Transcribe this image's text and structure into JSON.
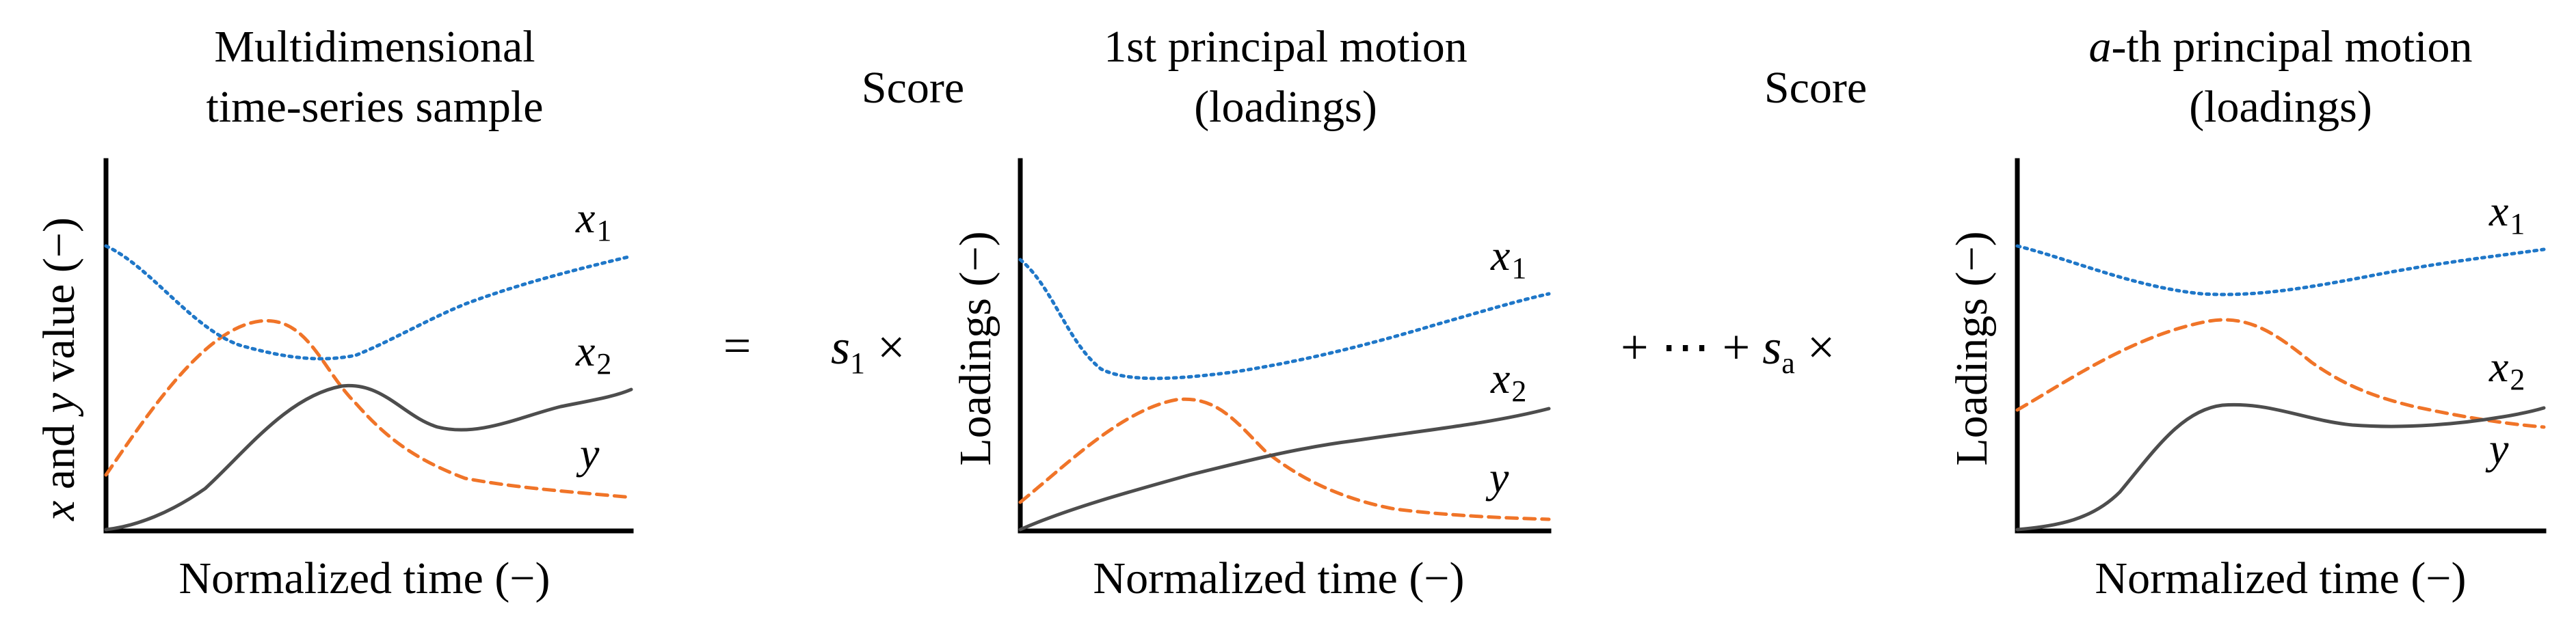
{
  "colors": {
    "x1": "#1f77c8",
    "x2": "#4d4d4d",
    "y": "#f07428",
    "axis": "#000000"
  },
  "panels": [
    {
      "title_lines": [
        "Multidimensional",
        "time-series sample"
      ],
      "ylabel_italic_x": "x",
      "ylabel_mid": " and ",
      "ylabel_italic_y": "y",
      "ylabel_rest": " value (−)",
      "xlabel": "Normalized time (−)",
      "series_labels": {
        "x1": "x",
        "x1_sub": "1",
        "x2": "x",
        "x2_sub": "2",
        "y": "y"
      }
    },
    {
      "title_lines": [
        "1st principal motion",
        "(loadings)"
      ],
      "ylabel": "Loadings (−)",
      "xlabel": "Normalized time (−)",
      "series_labels": {
        "x1": "x",
        "x1_sub": "1",
        "x2": "x",
        "x2_sub": "2",
        "y": "y"
      }
    },
    {
      "title_lines_italic": "a",
      "title_line1_rest": "-th principal motion",
      "title_line2": "(loadings)",
      "ylabel": "Loadings (−)",
      "xlabel": "Normalized time (−)",
      "series_labels": {
        "x1": "x",
        "x1_sub": "1",
        "x2": "x",
        "x2_sub": "2",
        "y": "y"
      }
    }
  ],
  "operators": {
    "equals": "=",
    "score1_label": "Score",
    "s1": "s",
    "s1_sub": "1",
    "times1": " ×",
    "score2_label": "Score",
    "plus_dots": "+ ⋯ + ",
    "sa": "s",
    "sa_sub": "a",
    "times2": " ×"
  }
}
